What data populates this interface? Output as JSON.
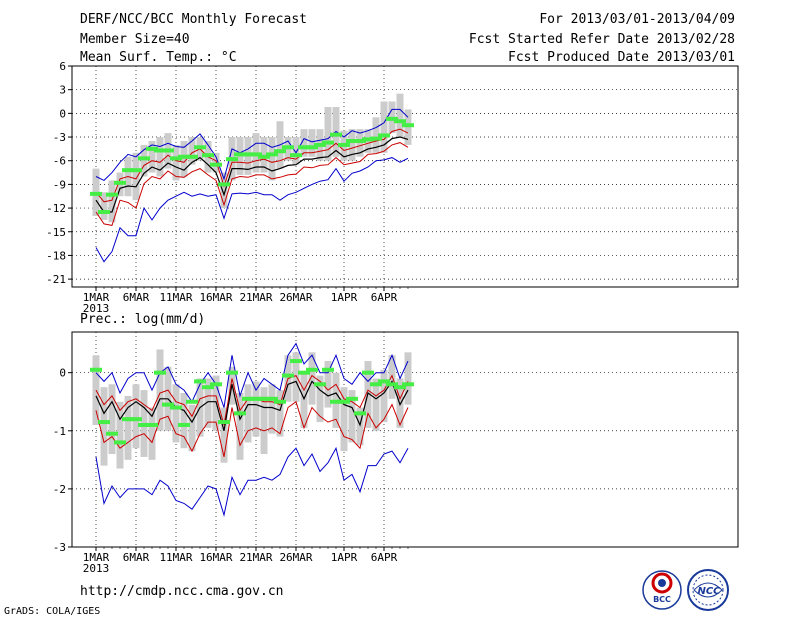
{
  "header": {
    "title": "DERF/NCC/BCC Monthly Forecast",
    "member_size": "Member Size=40",
    "variable": "Mean Surf. Temp.: °C",
    "period": "For 2013/03/01-2013/04/09",
    "refer_date": "Fcst Started Refer Date 2013/02/28",
    "produced_date": "Fcst Produced Date 2013/03/01"
  },
  "footer": {
    "url": "http://cmdp.ncc.cma.gov.cn",
    "grads": "GrADS: COLA/IGES",
    "logo_left_text": "BCC",
    "logo_right_text": "NCC"
  },
  "colors": {
    "ensemble_mean": "#000000",
    "percentile_band": "#cc0000",
    "extremes": "#0000cc",
    "observed_marker": "#44ee44",
    "spread_box": "#cccccc",
    "grid": "#000000"
  },
  "chart_data": [
    {
      "type": "line",
      "title": "Mean Surf. Temp.: °C",
      "xlabel": "",
      "ylabel": "",
      "ylim": [
        -22,
        6
      ],
      "yticks": [
        6,
        3,
        0,
        -3,
        -6,
        -9,
        -12,
        -15,
        -18,
        -21
      ],
      "grid": true,
      "x_day_index": [
        0,
        1,
        2,
        3,
        4,
        5,
        6,
        7,
        8,
        9,
        10,
        11,
        12,
        13,
        14,
        15,
        16,
        17,
        18,
        19,
        20,
        21,
        22,
        23,
        24,
        25,
        26,
        27,
        28,
        29,
        30,
        31,
        32,
        33,
        34,
        35,
        36,
        37,
        38,
        39
      ],
      "x_tick_labels": [
        {
          "day": 0,
          "label": "1MAR",
          "sub": "2013"
        },
        {
          "day": 5,
          "label": "6MAR"
        },
        {
          "day": 10,
          "label": "11MAR"
        },
        {
          "day": 15,
          "label": "16MAR"
        },
        {
          "day": 20,
          "label": "21MAR"
        },
        {
          "day": 25,
          "label": "26MAR"
        },
        {
          "day": 31,
          "label": "1APR"
        },
        {
          "day": 36,
          "label": "6APR"
        }
      ],
      "series": [
        {
          "name": "max",
          "role": "extremes",
          "values": [
            -8.0,
            -8.5,
            -7.5,
            -6.2,
            -5.2,
            -5.5,
            -4.6,
            -4.0,
            -4.2,
            -3.8,
            -4.2,
            -4.3,
            -3.5,
            -2.6,
            -4.0,
            -5.5,
            -8.3,
            -4.5,
            -5.0,
            -4.5,
            -3.8,
            -3.8,
            -4.3,
            -4.0,
            -3.5,
            -5.0,
            -3.2,
            -3.6,
            -3.4,
            -3.2,
            -2.3,
            -3.0,
            -2.2,
            -2.5,
            -2.2,
            -1.8,
            -1.2,
            0.5,
            0.5,
            -0.5
          ]
        },
        {
          "name": "upper",
          "role": "percentile_band",
          "values": [
            -10.0,
            -11.2,
            -11.0,
            -8.3,
            -8.0,
            -8.3,
            -6.6,
            -6.0,
            -6.2,
            -5.3,
            -6.0,
            -6.2,
            -5.0,
            -4.5,
            -5.5,
            -6.0,
            -9.2,
            -6.2,
            -6.2,
            -6.3,
            -6.0,
            -5.8,
            -6.2,
            -6.0,
            -5.6,
            -5.8,
            -5.0,
            -5.0,
            -4.8,
            -4.6,
            -3.8,
            -4.7,
            -4.4,
            -4.1,
            -3.8,
            -3.5,
            -3.3,
            -2.3,
            -2.0,
            -2.5
          ]
        },
        {
          "name": "ensemble_mean",
          "role": "ensemble_mean",
          "values": [
            -11.0,
            -12.5,
            -12.5,
            -9.5,
            -9.2,
            -9.3,
            -7.6,
            -6.8,
            -7.2,
            -6.3,
            -6.8,
            -7.2,
            -6.2,
            -5.6,
            -6.5,
            -7.5,
            -10.3,
            -7.0,
            -7.0,
            -7.1,
            -6.8,
            -6.8,
            -7.3,
            -7.0,
            -6.6,
            -6.5,
            -5.8,
            -5.8,
            -5.6,
            -5.5,
            -4.7,
            -5.5,
            -5.2,
            -5.0,
            -4.5,
            -4.3,
            -4.0,
            -3.2,
            -3.0,
            -3.3
          ]
        },
        {
          "name": "lower",
          "role": "percentile_band",
          "values": [
            -12.5,
            -14.0,
            -14.2,
            -11.0,
            -11.3,
            -12.0,
            -8.9,
            -8.0,
            -8.3,
            -7.3,
            -8.0,
            -8.1,
            -7.4,
            -7.0,
            -7.8,
            -8.5,
            -11.6,
            -8.3,
            -8.0,
            -8.1,
            -7.8,
            -7.8,
            -8.3,
            -8.1,
            -7.8,
            -7.7,
            -6.8,
            -6.9,
            -6.6,
            -6.5,
            -5.6,
            -6.5,
            -6.3,
            -6.1,
            -5.2,
            -5.1,
            -4.8,
            -4.0,
            -3.7,
            -4.3
          ]
        },
        {
          "name": "min",
          "role": "extremes",
          "values": [
            -17.0,
            -18.8,
            -17.5,
            -14.5,
            -15.5,
            -15.5,
            -12.0,
            -13.5,
            -12.0,
            -11.0,
            -10.5,
            -10.0,
            -10.5,
            -10.2,
            -10.5,
            -10.3,
            -13.3,
            -10.2,
            -10.1,
            -10.2,
            -10.0,
            -10.3,
            -10.3,
            -11.0,
            -10.3,
            -10.0,
            -9.5,
            -9.0,
            -8.6,
            -8.4,
            -7.0,
            -8.6,
            -7.6,
            -7.3,
            -6.8,
            -6.0,
            -5.9,
            -5.6,
            -6.2,
            -5.7
          ]
        },
        {
          "name": "observed",
          "role": "observed_marker",
          "values": [
            -10.2,
            -12.5,
            -10.3,
            -8.8,
            -7.2,
            -7.2,
            -5.7,
            -4.5,
            -4.7,
            -4.7,
            -5.7,
            -5.5,
            -5.5,
            -4.3,
            -5.3,
            -6.5,
            -9.0,
            -5.8,
            -5.2,
            -5.2,
            -5.2,
            -5.5,
            -5.2,
            -4.8,
            -4.3,
            -5.3,
            -4.3,
            -4.3,
            -4.0,
            -3.7,
            -2.7,
            -4.0,
            -3.5,
            -3.5,
            -3.3,
            -3.2,
            -2.8,
            -0.7,
            -1.0,
            -1.5
          ]
        }
      ],
      "spread_boxes": [
        [
          -7.0,
          -13.0
        ],
        [
          -10.0,
          -13.5
        ],
        [
          -8.5,
          -13.8
        ],
        [
          -7.5,
          -10.5
        ],
        [
          -5.5,
          -10.5
        ],
        [
          -5.0,
          -11.0
        ],
        [
          -4.0,
          -8.0
        ],
        [
          -3.5,
          -7.5
        ],
        [
          -3.0,
          -8.0
        ],
        [
          -2.5,
          -7.0
        ],
        [
          -4.0,
          -8.5
        ],
        [
          -3.5,
          -8.0
        ],
        [
          -3.0,
          -6.5
        ],
        [
          -3.0,
          -6.0
        ],
        [
          -3.5,
          -7.5
        ],
        [
          -5.0,
          -7.5
        ],
        [
          -7.5,
          -12.0
        ],
        [
          -3.0,
          -8.5
        ],
        [
          -3.0,
          -7.8
        ],
        [
          -3.0,
          -7.8
        ],
        [
          -2.5,
          -7.5
        ],
        [
          -3.0,
          -7.5
        ],
        [
          -3.0,
          -8.5
        ],
        [
          -1.0,
          -7.0
        ],
        [
          -3.0,
          -6.0
        ],
        [
          -3.0,
          -6.5
        ],
        [
          -2.0,
          -5.5
        ],
        [
          -2.0,
          -5.5
        ],
        [
          -2.0,
          -6.0
        ],
        [
          0.8,
          -6.0
        ],
        [
          0.8,
          -5.5
        ],
        [
          -2.2,
          -6.0
        ],
        [
          -2.0,
          -6.0
        ],
        [
          -2.0,
          -5.5
        ],
        [
          -2.0,
          -5.0
        ],
        [
          -0.5,
          -5.0
        ],
        [
          1.5,
          -5.0
        ],
        [
          1.5,
          -2.5
        ],
        [
          2.5,
          -3.0
        ],
        [
          0.5,
          -4.0
        ]
      ]
    },
    {
      "type": "line",
      "title": "Prec.: log(mm/d)",
      "xlabel": "",
      "ylabel": "",
      "ylim": [
        -3,
        0.7
      ],
      "yticks": [
        0,
        -1,
        -2,
        -3
      ],
      "grid": true,
      "x_day_index": [
        0,
        1,
        2,
        3,
        4,
        5,
        6,
        7,
        8,
        9,
        10,
        11,
        12,
        13,
        14,
        15,
        16,
        17,
        18,
        19,
        20,
        21,
        22,
        23,
        24,
        25,
        26,
        27,
        28,
        29,
        30,
        31,
        32,
        33,
        34,
        35,
        36,
        37,
        38,
        39
      ],
      "x_tick_labels": [
        {
          "day": 0,
          "label": "1MAR",
          "sub": "2013"
        },
        {
          "day": 5,
          "label": "6MAR"
        },
        {
          "day": 10,
          "label": "11MAR"
        },
        {
          "day": 15,
          "label": "16MAR"
        },
        {
          "day": 20,
          "label": "21MAR"
        },
        {
          "day": 25,
          "label": "26MAR"
        },
        {
          "day": 31,
          "label": "1APR"
        },
        {
          "day": 36,
          "label": "6APR"
        }
      ],
      "series": [
        {
          "name": "max",
          "role": "extremes",
          "values": [
            0.0,
            -0.15,
            0.0,
            -0.35,
            -0.1,
            0.0,
            0.0,
            -0.3,
            0.0,
            0.1,
            -0.2,
            -0.3,
            -0.5,
            -0.2,
            0.0,
            -0.2,
            -0.6,
            0.3,
            -0.4,
            0.0,
            -0.3,
            -0.1,
            -0.2,
            -0.3,
            0.3,
            0.5,
            0.15,
            0.3,
            0.0,
            0.0,
            0.3,
            -0.1,
            -0.2,
            0.0,
            -0.15,
            0.0,
            0.0,
            0.3,
            -0.1,
            0.2
          ]
        },
        {
          "name": "upper",
          "role": "percentile_band",
          "values": [
            -0.3,
            -0.55,
            -0.4,
            -0.65,
            -0.5,
            -0.45,
            -0.55,
            -0.65,
            -0.35,
            -0.3,
            -0.5,
            -0.55,
            -0.75,
            -0.45,
            -0.4,
            -0.4,
            -0.9,
            -0.1,
            -0.65,
            -0.45,
            -0.45,
            -0.5,
            -0.5,
            -0.55,
            -0.1,
            -0.05,
            -0.3,
            -0.05,
            -0.15,
            -0.3,
            -0.2,
            -0.45,
            -0.5,
            -0.6,
            -0.3,
            -0.4,
            -0.3,
            -0.05,
            -0.45,
            -0.15
          ]
        },
        {
          "name": "ensemble_mean",
          "role": "ensemble_mean",
          "values": [
            -0.4,
            -0.7,
            -0.5,
            -0.8,
            -0.6,
            -0.5,
            -0.6,
            -0.75,
            -0.45,
            -0.45,
            -0.6,
            -0.65,
            -0.85,
            -0.6,
            -0.5,
            -0.5,
            -1.0,
            -0.2,
            -0.8,
            -0.55,
            -0.55,
            -0.6,
            -0.6,
            -0.65,
            -0.2,
            -0.15,
            -0.45,
            -0.15,
            -0.3,
            -0.4,
            -0.35,
            -0.55,
            -0.6,
            -0.9,
            -0.35,
            -0.45,
            -0.35,
            -0.15,
            -0.55,
            -0.3
          ]
        },
        {
          "name": "lower",
          "role": "percentile_band",
          "values": [
            -0.65,
            -1.2,
            -1.1,
            -1.3,
            -1.2,
            -1.1,
            -1.05,
            -1.2,
            -0.8,
            -0.75,
            -1.05,
            -1.1,
            -1.35,
            -1.05,
            -0.85,
            -0.85,
            -1.45,
            -0.6,
            -1.25,
            -1.0,
            -0.95,
            -1.0,
            -0.95,
            -1.05,
            -0.6,
            -0.5,
            -0.95,
            -0.6,
            -0.75,
            -0.85,
            -0.8,
            -1.1,
            -1.15,
            -1.3,
            -0.7,
            -0.95,
            -0.8,
            -0.55,
            -0.9,
            -0.6
          ]
        },
        {
          "name": "min",
          "role": "extremes",
          "values": [
            -1.45,
            -2.25,
            -1.95,
            -2.15,
            -2.0,
            -2.0,
            -2.0,
            -2.1,
            -1.85,
            -1.95,
            -2.2,
            -2.25,
            -2.35,
            -2.15,
            -1.95,
            -2.0,
            -2.45,
            -1.8,
            -2.1,
            -1.85,
            -1.85,
            -1.8,
            -1.85,
            -1.75,
            -1.45,
            -1.3,
            -1.6,
            -1.4,
            -1.7,
            -1.55,
            -1.3,
            -1.85,
            -1.75,
            -2.05,
            -1.6,
            -1.6,
            -1.4,
            -1.35,
            -1.55,
            -1.3
          ]
        },
        {
          "name": "observed",
          "role": "observed_marker",
          "values": [
            0.05,
            -0.85,
            -1.05,
            -1.2,
            -0.8,
            -0.8,
            -0.9,
            -0.9,
            0.0,
            -0.55,
            -0.6,
            -0.9,
            -0.5,
            -0.15,
            -0.25,
            -0.2,
            -0.85,
            0.0,
            -0.7,
            -0.45,
            -0.45,
            -0.45,
            -0.45,
            -0.5,
            -0.05,
            0.2,
            0.0,
            0.05,
            -0.2,
            0.05,
            -0.5,
            -0.5,
            -0.45,
            -0.7,
            0.0,
            -0.2,
            -0.15,
            -0.2,
            -0.25,
            -0.2
          ]
        }
      ],
      "spread_boxes": [
        [
          0.3,
          -0.9
        ],
        [
          -0.25,
          -1.6
        ],
        [
          -0.2,
          -1.4
        ],
        [
          -0.5,
          -1.65
        ],
        [
          -0.4,
          -1.5
        ],
        [
          -0.2,
          -1.3
        ],
        [
          -0.3,
          -1.45
        ],
        [
          -0.6,
          -1.5
        ],
        [
          0.4,
          -1.0
        ],
        [
          0.1,
          -1.0
        ],
        [
          -0.2,
          -1.2
        ],
        [
          -0.35,
          -1.3
        ],
        [
          -0.55,
          -1.35
        ],
        [
          -0.1,
          -1.1
        ],
        [
          -0.1,
          -0.95
        ],
        [
          -0.05,
          -1.0
        ],
        [
          -0.6,
          -1.55
        ],
        [
          0.1,
          -0.55
        ],
        [
          -0.35,
          -1.5
        ],
        [
          -0.2,
          -1.2
        ],
        [
          -0.15,
          -1.1
        ],
        [
          -0.25,
          -1.4
        ],
        [
          -0.2,
          -1.05
        ],
        [
          -0.3,
          -1.1
        ],
        [
          0.3,
          -0.5
        ],
        [
          0.35,
          -0.5
        ],
        [
          0.0,
          -0.95
        ],
        [
          0.35,
          -0.55
        ],
        [
          -0.05,
          -0.85
        ],
        [
          0.2,
          -0.6
        ],
        [
          0.0,
          -0.95
        ],
        [
          -0.25,
          -1.35
        ],
        [
          -0.3,
          -1.2
        ],
        [
          -0.6,
          -1.25
        ],
        [
          0.2,
          -0.95
        ],
        [
          -0.1,
          -1.0
        ],
        [
          0.05,
          -0.85
        ],
        [
          0.3,
          -0.45
        ],
        [
          -0.1,
          -0.95
        ],
        [
          0.35,
          -0.55
        ]
      ]
    }
  ]
}
